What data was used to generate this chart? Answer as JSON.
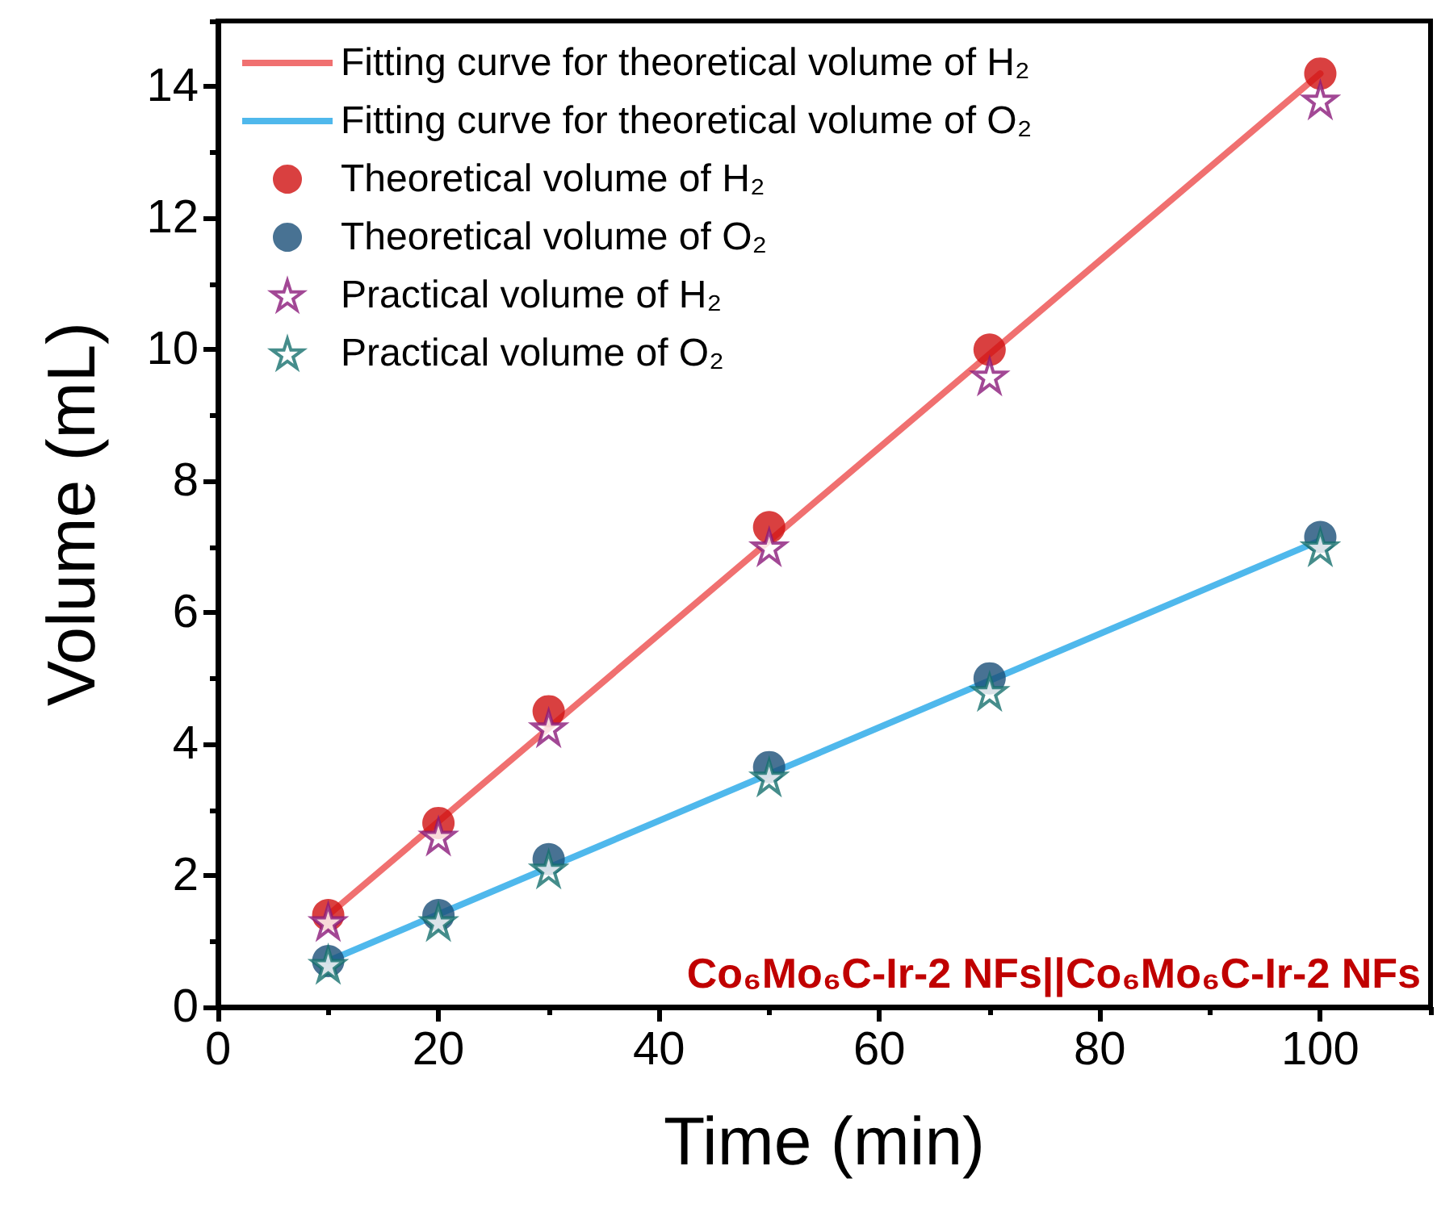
{
  "chart_data": {
    "type": "scatter",
    "xlabel": "Time (min)",
    "ylabel": "Volume (mL)",
    "xlim": [
      0,
      110
    ],
    "xticks": [
      0,
      20,
      40,
      60,
      80,
      100
    ],
    "ylim": [
      0,
      15
    ],
    "yticks": [
      0,
      2,
      4,
      6,
      8,
      10,
      12,
      14
    ],
    "grid": false,
    "legend": "top left",
    "annotations": [
      "Co₆Mo₆C-Ir-2 NFs||Co₆Mo₆C-Ir-2 NFs"
    ],
    "series": [
      {
        "name": "Fitting curve for theoretical volume of H₂",
        "type": "line",
        "marker": "none",
        "color": "#f07070",
        "x": [
          10,
          100
        ],
        "values": [
          1.4,
          14.2
        ]
      },
      {
        "name": "Fitting curve for theoretical volume of O₂",
        "type": "line",
        "marker": "none",
        "color": "#4fb8ec",
        "x": [
          10,
          100
        ],
        "values": [
          0.7,
          7.1
        ]
      },
      {
        "name": "Theoretical volume of H₂",
        "marker": "circle",
        "color": "#d01010",
        "x": [
          10,
          20,
          30,
          50,
          70,
          100
        ],
        "values": [
          1.4,
          2.8,
          4.5,
          7.3,
          10.0,
          14.2
        ]
      },
      {
        "name": "Theoretical volume of O₂",
        "marker": "circle",
        "color": "#1a4f78",
        "x": [
          10,
          20,
          30,
          50,
          70,
          100
        ],
        "values": [
          0.7,
          1.4,
          2.25,
          3.65,
          5.0,
          7.15
        ]
      },
      {
        "name": "Practical volume of H₂",
        "marker": "star",
        "color": "#8b1a7a",
        "x": [
          10,
          20,
          30,
          50,
          70,
          100
        ],
        "values": [
          1.3,
          2.6,
          4.25,
          7.0,
          9.6,
          13.8
        ]
      },
      {
        "name": "Practical volume of O₂",
        "marker": "star",
        "color": "#17706e",
        "x": [
          10,
          20,
          30,
          50,
          70,
          100
        ],
        "values": [
          0.65,
          1.3,
          2.1,
          3.5,
          4.8,
          7.0
        ]
      }
    ]
  }
}
